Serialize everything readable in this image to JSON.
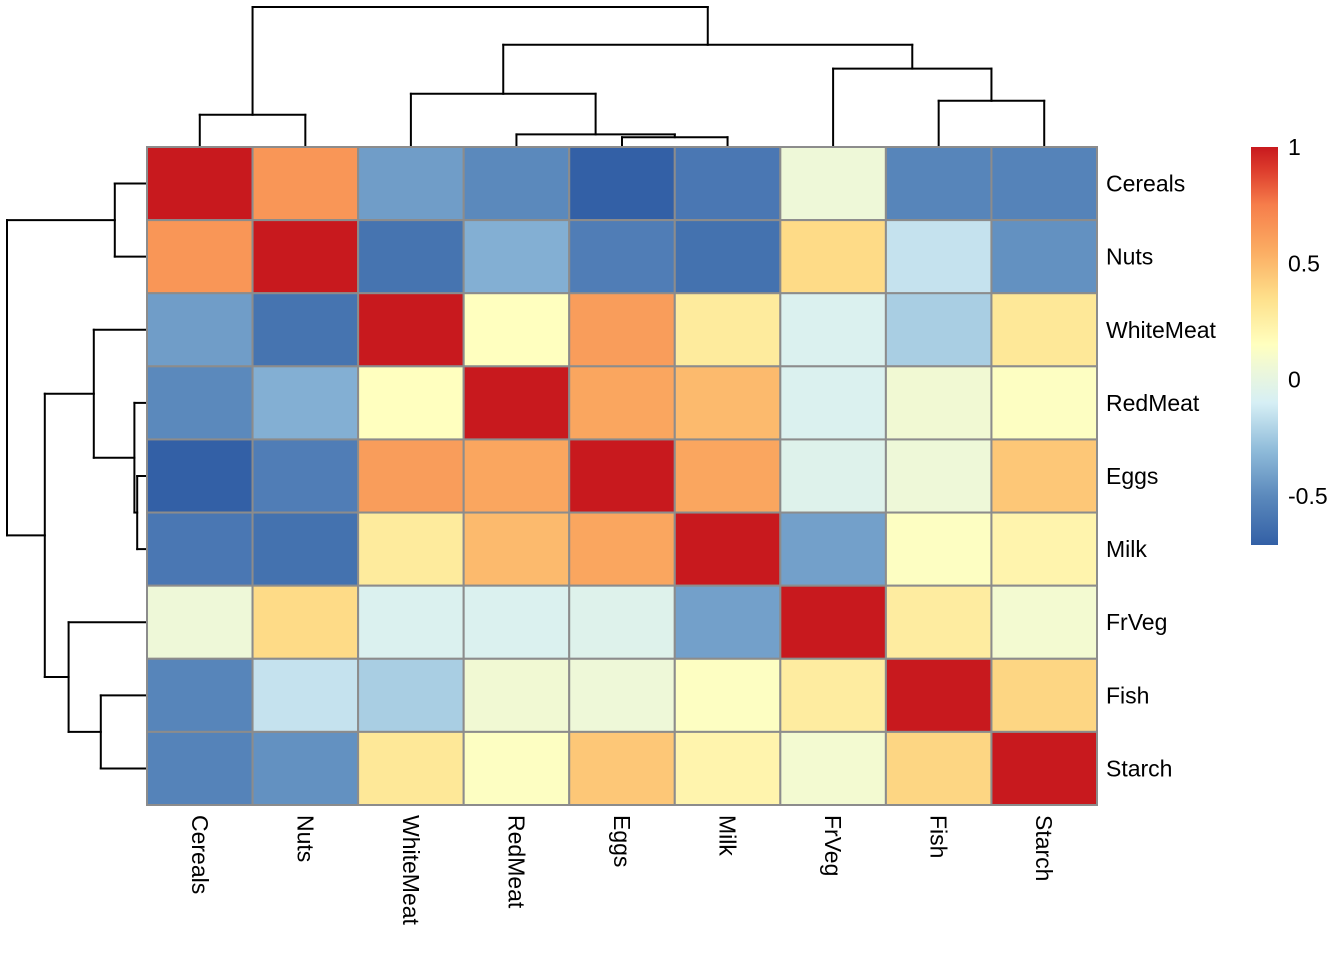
{
  "chart_data": {
    "type": "heatmap",
    "title": "",
    "row_labels": [
      "Cereals",
      "Nuts",
      "WhiteMeat",
      "RedMeat",
      "Eggs",
      "Milk",
      "FrVeg",
      "Fish",
      "Starch"
    ],
    "col_labels": [
      "Cereals",
      "Nuts",
      "WhiteMeat",
      "RedMeat",
      "Eggs",
      "Milk",
      "FrVeg",
      "Fish",
      "Starch"
    ],
    "values": [
      [
        1.0,
        0.65,
        -0.42,
        -0.5,
        -0.71,
        -0.59,
        0.05,
        -0.52,
        -0.53
      ],
      [
        0.65,
        1.0,
        -0.61,
        -0.35,
        -0.56,
        -0.62,
        0.37,
        -0.15,
        -0.47
      ],
      [
        -0.42,
        -0.61,
        1.0,
        0.15,
        0.62,
        0.28,
        -0.07,
        -0.23,
        0.3
      ],
      [
        -0.5,
        -0.35,
        0.15,
        1.0,
        0.58,
        0.5,
        -0.07,
        0.07,
        0.14
      ],
      [
        -0.71,
        -0.56,
        0.62,
        0.58,
        1.0,
        0.58,
        -0.05,
        0.05,
        0.45
      ],
      [
        -0.59,
        -0.62,
        0.28,
        0.5,
        0.58,
        1.0,
        -0.41,
        0.14,
        0.22
      ],
      [
        0.05,
        0.37,
        -0.07,
        -0.07,
        -0.05,
        -0.41,
        1.0,
        0.27,
        0.08
      ],
      [
        -0.52,
        -0.15,
        -0.23,
        0.07,
        0.05,
        0.14,
        0.27,
        1.0,
        0.39
      ],
      [
        -0.53,
        -0.47,
        0.3,
        0.14,
        0.45,
        0.22,
        0.08,
        0.39,
        1.0
      ]
    ],
    "color_scale": {
      "range": [
        -0.71,
        1.0
      ],
      "stops": [
        {
          "value": -0.71,
          "color": "#3360A6"
        },
        {
          "value": -0.5,
          "color": "#5B89BC"
        },
        {
          "value": -0.3,
          "color": "#90BCDA"
        },
        {
          "value": -0.1,
          "color": "#D6EFF5"
        },
        {
          "value": 0.05,
          "color": "#EEF8D8"
        },
        {
          "value": 0.15,
          "color": "#FFFFBF"
        },
        {
          "value": 0.35,
          "color": "#FEE08B"
        },
        {
          "value": 0.55,
          "color": "#FBAD63"
        },
        {
          "value": 0.75,
          "color": "#F67E4B"
        },
        {
          "value": 0.9,
          "color": "#DD3D2D"
        },
        {
          "value": 1.0,
          "color": "#C8191E"
        }
      ]
    },
    "legend": {
      "position": "right",
      "ticks": [
        1,
        0.5,
        0,
        -0.5
      ],
      "tick_labels": [
        "1",
        "0.5",
        "0",
        "-0.5"
      ]
    },
    "row_dendrogram": {
      "merges": [
        {
          "left": "Eggs",
          "right": "Milk",
          "height": 0.07
        },
        {
          "left": "RedMeat",
          "right": "Eggs+Milk",
          "height": 0.09
        },
        {
          "left": "Fish",
          "right": "Starch",
          "height": 0.33
        },
        {
          "left": "WhiteMeat",
          "right": "RedMeat+Eggs+Milk",
          "height": 0.38
        },
        {
          "left": "Cereals",
          "right": "Nuts",
          "height": 0.23
        },
        {
          "left": "FrVeg",
          "right": "Fish+Starch",
          "height": 0.56
        },
        {
          "left": "WhiteMeat..Milk",
          "right": "FrVeg..Starch",
          "height": 0.73
        },
        {
          "left": "Cereals+Nuts",
          "right": "rest",
          "height": 1.0
        }
      ]
    },
    "col_dendrogram": {
      "merges": [
        {
          "left": "Eggs",
          "right": "Milk",
          "height": 0.07
        },
        {
          "left": "RedMeat",
          "right": "Eggs+Milk",
          "height": 0.09
        },
        {
          "left": "Fish",
          "right": "Starch",
          "height": 0.33
        },
        {
          "left": "WhiteMeat",
          "right": "RedMeat+Eggs+Milk",
          "height": 0.38
        },
        {
          "left": "Cereals",
          "right": "Nuts",
          "height": 0.23
        },
        {
          "left": "FrVeg",
          "right": "Fish+Starch",
          "height": 0.56
        },
        {
          "left": "WhiteMeat..Milk",
          "right": "FrVeg..Starch",
          "height": 0.73
        },
        {
          "left": "Cereals+Nuts",
          "right": "rest",
          "height": 1.0
        }
      ]
    },
    "grid_border_color": "#8C8C8C"
  }
}
